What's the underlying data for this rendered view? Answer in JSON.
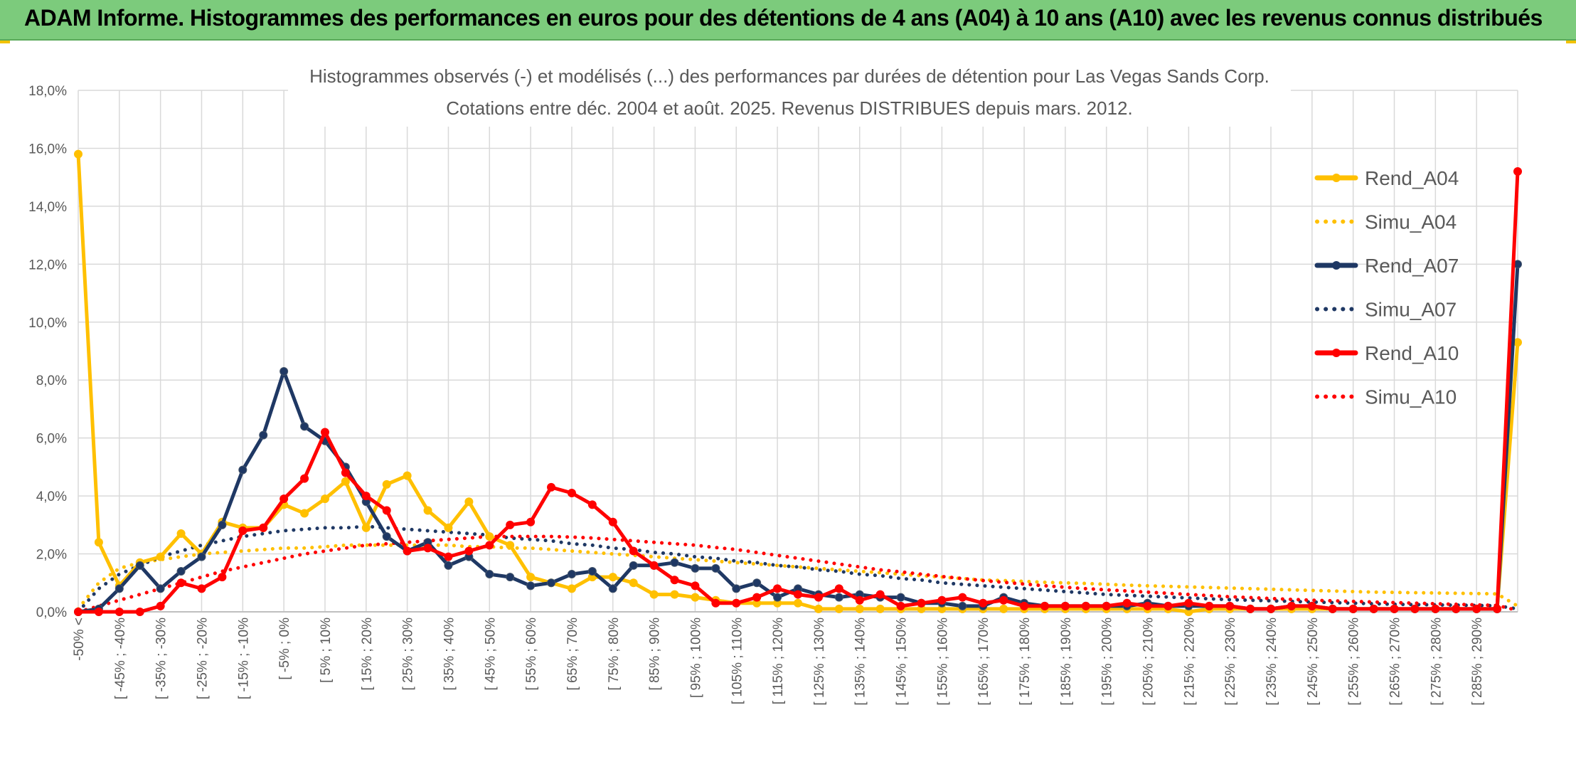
{
  "banner": {
    "title": "ADAM Informe. Histogrammes des performances en euros pour des détentions de 4 ans (A04) à 10 ans (A10) avec les revenus connus distribués"
  },
  "chart_data": {
    "type": "line",
    "title": "Histogrammes observés (-) et modélisés (...) des performances par durées de détention pour Las Vegas Sands Corp.",
    "subtitle": "Cotations entre déc. 2004 et août. 2025. Revenus DISTRIBUES depuis mars. 2012.",
    "y_ticks": [
      "0,0%",
      "2,0%",
      "4,0%",
      "6,0%",
      "8,0%",
      "10,0%",
      "12,0%",
      "14,0%",
      "16,0%",
      "18,0%"
    ],
    "ylim": [
      0,
      18
    ],
    "grid": true,
    "legend_position": "top-right",
    "x_labels": [
      "-50% <",
      "[ -45% ; -40%",
      "[ -35% ; -30%",
      "[ -25% ; -20%",
      "[ -15% ; -10%",
      "[ -5% ; 0%",
      "[ 5% ; 10%",
      "[ 15% ; 20%",
      "[ 25% ; 30%",
      "[ 35% ; 40%",
      "[ 45% ; 50%",
      "[ 55% ; 60%",
      "[ 65% ; 70%",
      "[ 75% ; 80%",
      "[ 85% ; 90%",
      "[ 95% ; 100%",
      "[ 105% ; 110%",
      "[ 115% ; 120%",
      "[ 125% ; 130%",
      "[ 135% ; 140%",
      "[ 145% ; 150%",
      "[ 155% ; 160%",
      "[ 165% ; 170%",
      "[ 175% ; 180%",
      "[ 185% ; 190%",
      "[ 195% ; 200%",
      "[ 205% ; 210%",
      "[ 215% ; 220%",
      "[ 225% ; 230%",
      "[ 235% ; 240%",
      "[ 245% ; 250%",
      "[ 255% ; 260%",
      "[ 265% ; 270%",
      "[ 275% ; 280%",
      "[ 285% ; 290%"
    ],
    "series": [
      {
        "name": "Rend_A04",
        "color": "#ffc000",
        "style": "solid",
        "markers": true,
        "values": [
          15.8,
          2.4,
          0.9,
          1.7,
          1.9,
          2.7,
          2.0,
          3.1,
          2.9,
          2.9,
          3.7,
          3.4,
          3.9,
          4.5,
          2.9,
          4.4,
          4.7,
          3.5,
          2.9,
          3.8,
          2.6,
          2.3,
          1.2,
          1.0,
          0.8,
          1.2,
          1.2,
          1.0,
          0.6,
          0.6,
          0.5,
          0.4,
          0.3,
          0.3,
          0.3,
          0.3,
          0.1,
          0.1,
          0.1,
          0.1,
          0.1,
          0.1,
          0.1,
          0.1,
          0.1,
          0.1,
          0.1,
          0.1,
          0.1,
          0.1,
          0.1,
          0.1,
          0.1,
          0.1,
          0.0,
          0.1,
          0.1,
          0.1,
          0.1,
          0.1,
          0.1,
          0.1,
          0.1,
          0.1,
          0.1,
          0.1,
          0.1,
          0.1,
          0.1,
          0.1,
          9.3
        ]
      },
      {
        "name": "Simu_A04",
        "color": "#ffc000",
        "style": "dotted",
        "markers": false,
        "values": [
          0.1,
          1.0,
          1.5,
          1.7,
          1.8,
          1.9,
          2.0,
          2.05,
          2.1,
          2.15,
          2.2,
          2.2,
          2.25,
          2.3,
          2.3,
          2.3,
          2.3,
          2.3,
          2.3,
          2.25,
          2.25,
          2.2,
          2.2,
          2.15,
          2.1,
          2.05,
          2.0,
          1.95,
          1.9,
          1.85,
          1.8,
          1.75,
          1.7,
          1.65,
          1.6,
          1.55,
          1.5,
          1.45,
          1.4,
          1.35,
          1.3,
          1.25,
          1.2,
          1.15,
          1.1,
          1.08,
          1.05,
          1.02,
          1.0,
          0.98,
          0.95,
          0.92,
          0.9,
          0.88,
          0.86,
          0.84,
          0.82,
          0.8,
          0.78,
          0.76,
          0.74,
          0.72,
          0.7,
          0.68,
          0.67,
          0.66,
          0.65,
          0.64,
          0.63,
          0.62,
          0.2
        ]
      },
      {
        "name": "Rend_A07",
        "color": "#1f3864",
        "style": "solid",
        "markers": true,
        "values": [
          0.0,
          0.1,
          0.8,
          1.6,
          0.8,
          1.4,
          1.9,
          3.0,
          4.9,
          6.1,
          8.3,
          6.4,
          5.9,
          5.0,
          3.8,
          2.6,
          2.1,
          2.4,
          1.6,
          1.9,
          1.3,
          1.2,
          0.9,
          1.0,
          1.3,
          1.4,
          0.8,
          1.6,
          1.6,
          1.7,
          1.5,
          1.5,
          0.8,
          1.0,
          0.5,
          0.8,
          0.6,
          0.5,
          0.6,
          0.5,
          0.5,
          0.3,
          0.3,
          0.2,
          0.2,
          0.5,
          0.3,
          0.2,
          0.2,
          0.2,
          0.2,
          0.2,
          0.3,
          0.2,
          0.2,
          0.2,
          0.2,
          0.1,
          0.1,
          0.2,
          0.2,
          0.1,
          0.1,
          0.1,
          0.1,
          0.1,
          0.1,
          0.1,
          0.1,
          0.1,
          12.0
        ]
      },
      {
        "name": "Simu_A07",
        "color": "#1f3864",
        "style": "dotted",
        "markers": false,
        "values": [
          0.0,
          0.8,
          1.3,
          1.6,
          1.9,
          2.1,
          2.3,
          2.45,
          2.6,
          2.7,
          2.8,
          2.85,
          2.9,
          2.9,
          2.95,
          2.9,
          2.85,
          2.8,
          2.75,
          2.7,
          2.65,
          2.55,
          2.5,
          2.45,
          2.35,
          2.3,
          2.2,
          2.15,
          2.05,
          2.0,
          1.9,
          1.85,
          1.75,
          1.7,
          1.6,
          1.55,
          1.45,
          1.4,
          1.3,
          1.25,
          1.15,
          1.1,
          1.0,
          0.95,
          0.9,
          0.85,
          0.8,
          0.75,
          0.7,
          0.65,
          0.6,
          0.57,
          0.54,
          0.51,
          0.48,
          0.45,
          0.42,
          0.4,
          0.38,
          0.36,
          0.34,
          0.32,
          0.3,
          0.28,
          0.26,
          0.25,
          0.24,
          0.23,
          0.22,
          0.21,
          0.1
        ]
      },
      {
        "name": "Rend_A10",
        "color": "#ff0000",
        "style": "solid",
        "markers": true,
        "values": [
          0.0,
          0.0,
          0.0,
          0.0,
          0.2,
          1.0,
          0.8,
          1.2,
          2.8,
          2.9,
          3.9,
          4.6,
          6.2,
          4.8,
          4.0,
          3.5,
          2.1,
          2.2,
          1.9,
          2.1,
          2.3,
          3.0,
          3.1,
          4.3,
          4.1,
          3.7,
          3.1,
          2.1,
          1.6,
          1.1,
          0.9,
          0.3,
          0.3,
          0.5,
          0.8,
          0.6,
          0.5,
          0.8,
          0.4,
          0.6,
          0.2,
          0.3,
          0.4,
          0.5,
          0.3,
          0.4,
          0.2,
          0.2,
          0.2,
          0.2,
          0.2,
          0.3,
          0.2,
          0.2,
          0.3,
          0.2,
          0.2,
          0.1,
          0.1,
          0.2,
          0.2,
          0.1,
          0.1,
          0.1,
          0.1,
          0.1,
          0.1,
          0.1,
          0.1,
          0.1,
          15.2
        ]
      },
      {
        "name": "Simu_A10",
        "color": "#ff0000",
        "style": "dotted",
        "markers": false,
        "values": [
          0.0,
          0.2,
          0.4,
          0.6,
          0.8,
          1.0,
          1.2,
          1.4,
          1.55,
          1.7,
          1.85,
          2.0,
          2.1,
          2.2,
          2.3,
          2.35,
          2.4,
          2.45,
          2.5,
          2.55,
          2.6,
          2.6,
          2.6,
          2.6,
          2.58,
          2.55,
          2.5,
          2.45,
          2.4,
          2.35,
          2.3,
          2.22,
          2.15,
          2.05,
          1.95,
          1.85,
          1.75,
          1.65,
          1.55,
          1.45,
          1.38,
          1.3,
          1.22,
          1.15,
          1.08,
          1.02,
          0.96,
          0.9,
          0.85,
          0.8,
          0.76,
          0.72,
          0.68,
          0.64,
          0.6,
          0.56,
          0.52,
          0.49,
          0.46,
          0.43,
          0.4,
          0.38,
          0.36,
          0.34,
          0.32,
          0.3,
          0.28,
          0.26,
          0.24,
          0.22,
          0.05
        ]
      }
    ]
  }
}
